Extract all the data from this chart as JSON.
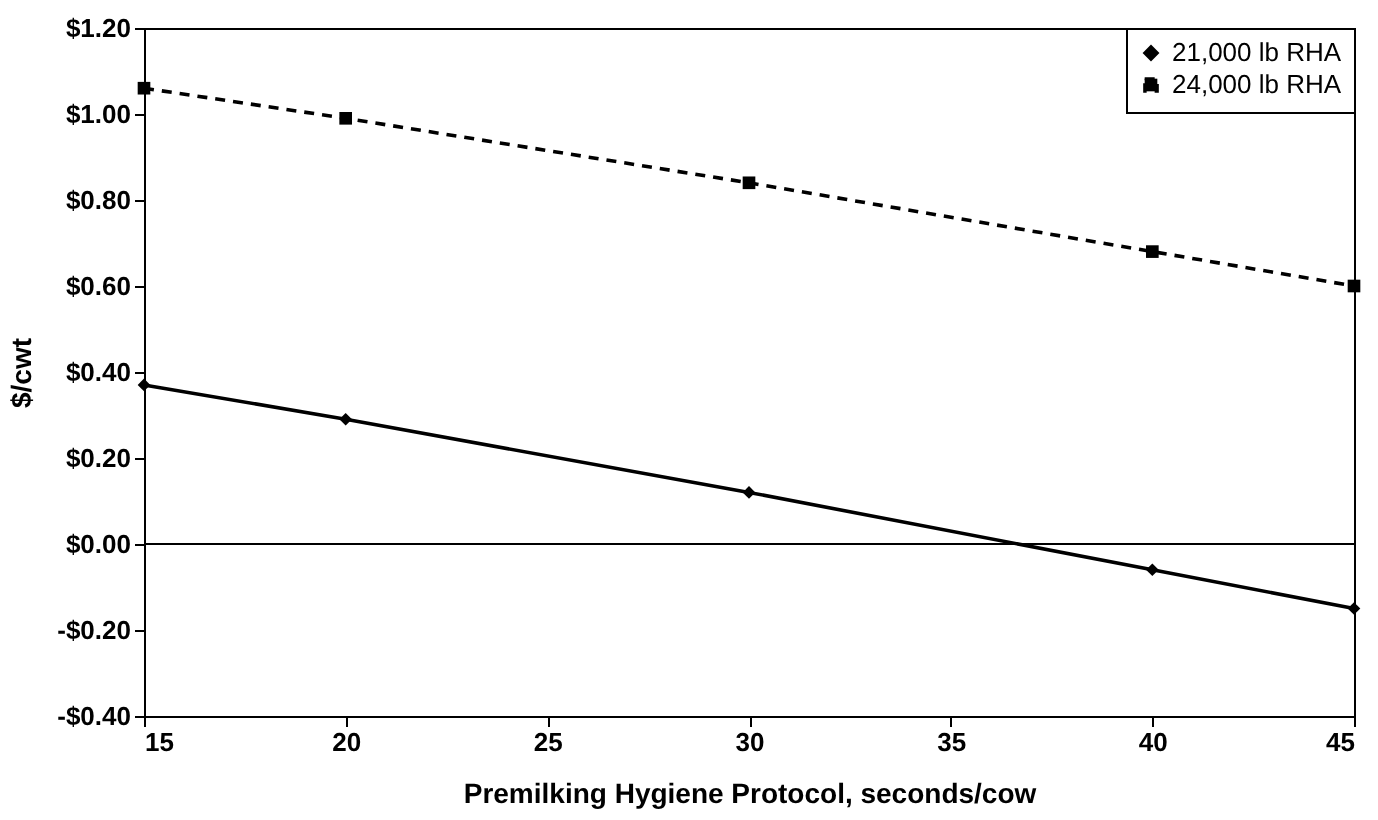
{
  "chart_data": {
    "type": "line",
    "xlabel": "Premilking Hygiene Protocol, seconds/cow",
    "ylabel": "$/cwt",
    "x": [
      15,
      20,
      30,
      40,
      45
    ],
    "series": [
      {
        "name": "21,000 lb RHA",
        "color": "#000000",
        "marker": "diamond",
        "line_style": "solid",
        "values": [
          0.37,
          0.29,
          0.12,
          -0.06,
          -0.15
        ]
      },
      {
        "name": "24,000 lb RHA",
        "color": "#000000",
        "marker": "square",
        "line_style": "dashed",
        "values": [
          1.06,
          0.99,
          0.84,
          0.68,
          0.6
        ]
      }
    ],
    "xlim": [
      15,
      45
    ],
    "xticks": [
      15,
      20,
      25,
      30,
      35,
      40,
      45
    ],
    "ylim": [
      -0.4,
      1.2
    ],
    "yticks": [
      {
        "value": -0.4,
        "label": "-$0.40"
      },
      {
        "value": -0.2,
        "label": "-$0.20"
      },
      {
        "value": 0,
        "label": "$0.00"
      },
      {
        "value": 0.2,
        "label": "$0.20"
      },
      {
        "value": 0.4,
        "label": "$0.40"
      },
      {
        "value": 0.6,
        "label": "$0.60"
      },
      {
        "value": 0.8,
        "label": "$0.80"
      },
      {
        "value": 1.0,
        "label": "$1.00"
      },
      {
        "value": 1.2,
        "label": "$1.20"
      }
    ],
    "ref_lines": [
      {
        "axis": "y",
        "value": 0,
        "color": "#000000"
      }
    ],
    "grid": false,
    "legend": "top right"
  }
}
